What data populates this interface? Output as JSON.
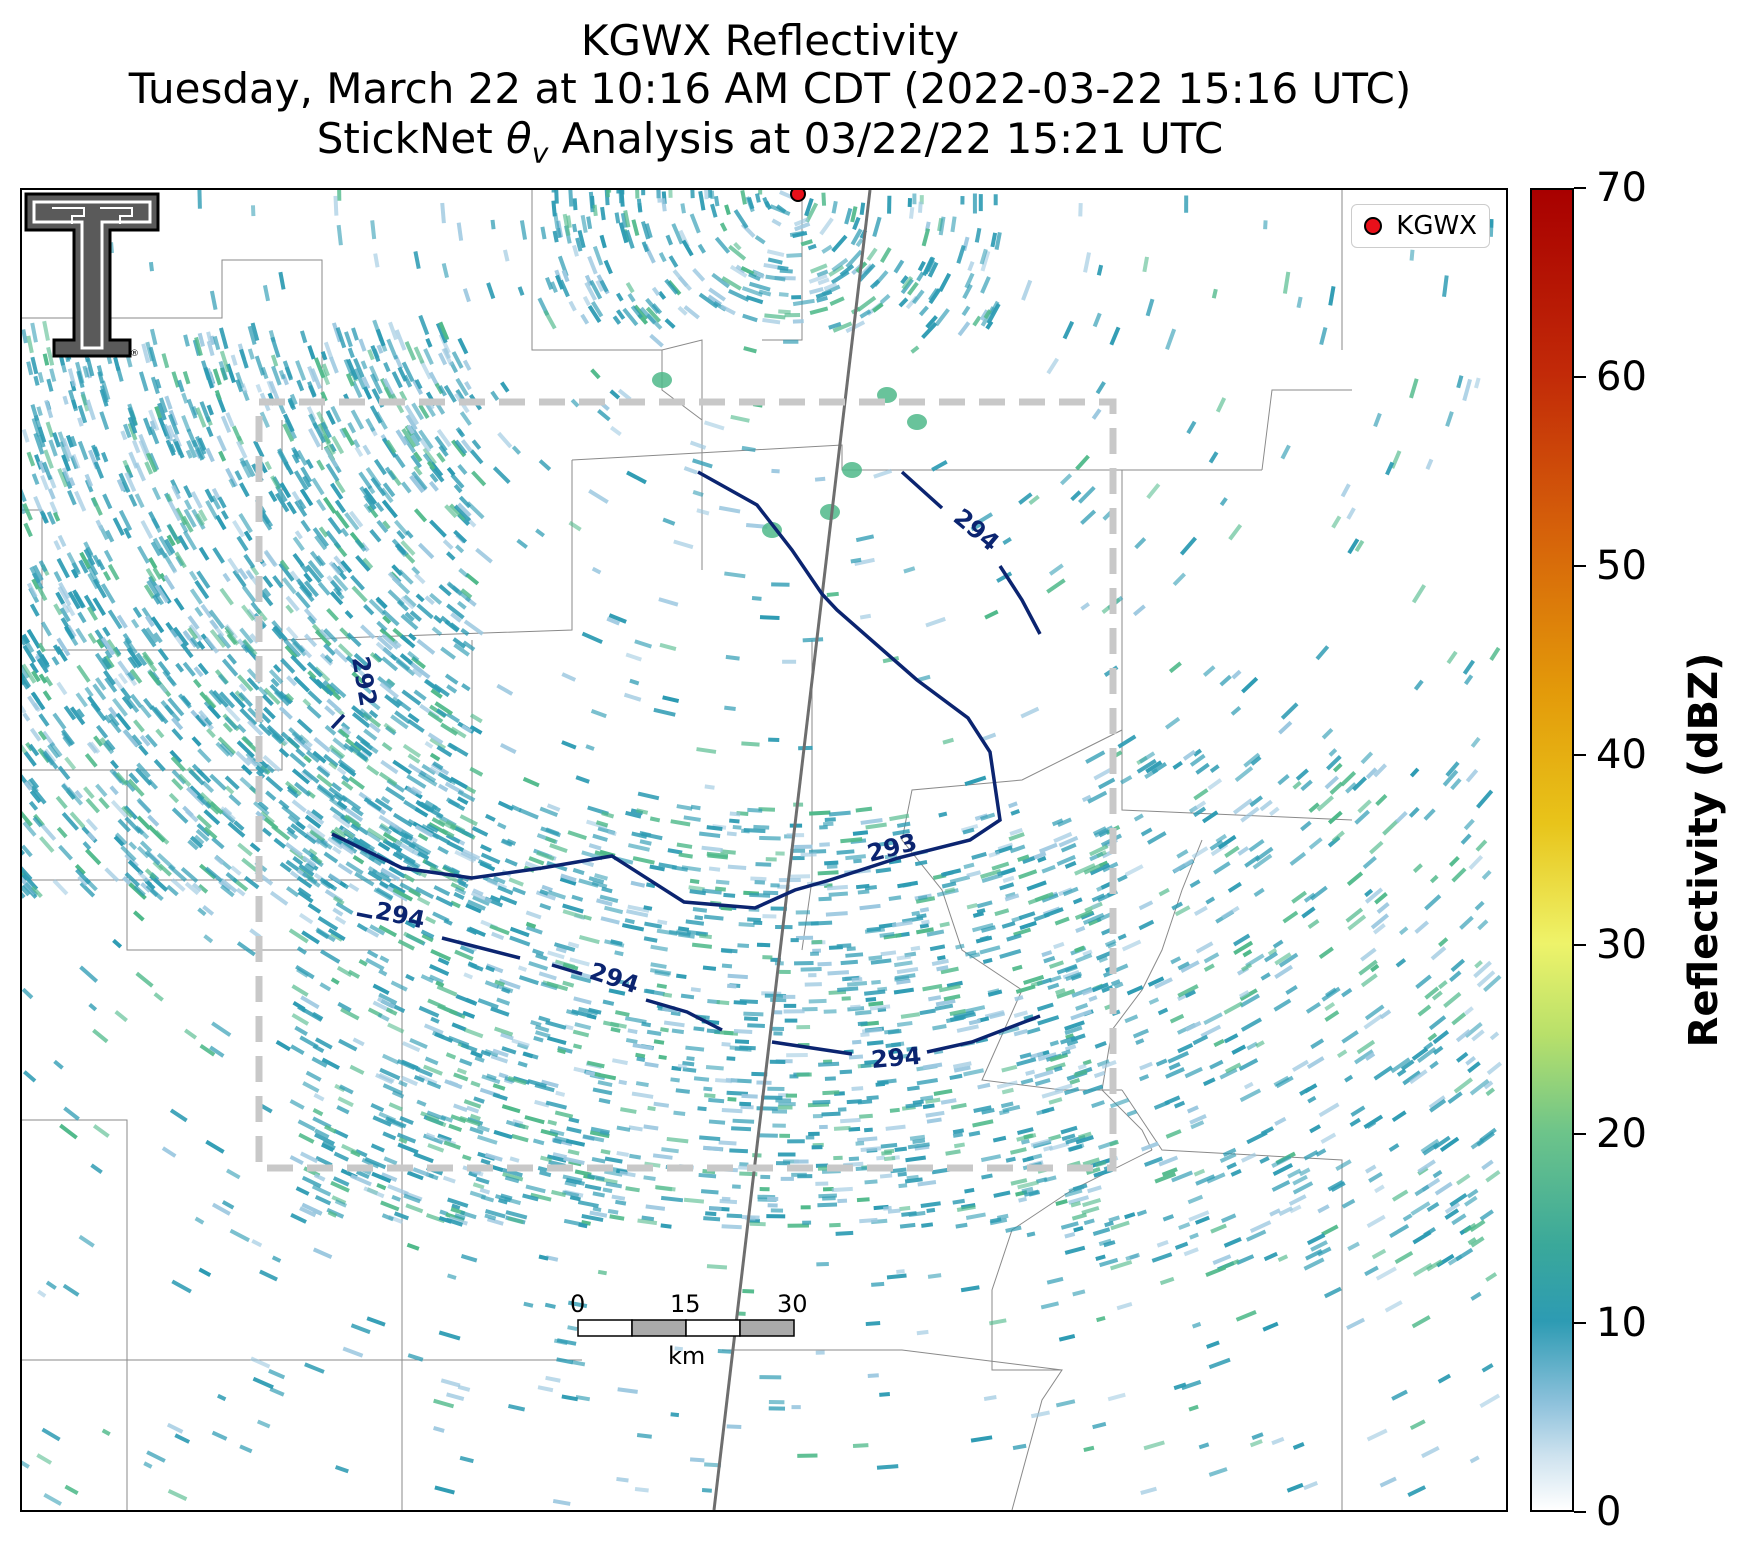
{
  "title": {
    "line1": "KGWX Reflectivity",
    "line2": "Tuesday, March 22 at 10:16 AM CDT (2022-03-22 15:16 UTC)",
    "line3_prefix": "StickNet ",
    "line3_theta": "θ",
    "line3_sub": "v",
    "line3_suffix": " Analysis at 03/22/22 15:21 UTC"
  },
  "legend": {
    "label": "KGWX",
    "marker_color": "#e8101a"
  },
  "colorbar": {
    "label": "Reflectivity (dBZ)",
    "ticks": [
      "0",
      "10",
      "20",
      "30",
      "40",
      "50",
      "60",
      "70"
    ],
    "range": [
      0,
      70
    ]
  },
  "contours": {
    "labels": [
      "292",
      "293",
      "294",
      "294",
      "294",
      "294"
    ],
    "color": "#0b2470"
  },
  "scalebar": {
    "ticks": [
      "0",
      "15",
      "30"
    ],
    "unit": "km"
  },
  "colors": {
    "echo": "#2d9bb3",
    "echo_light": "#9cc8e0",
    "echo_green": "#4fb98a",
    "box": "#c8c8c8"
  }
}
